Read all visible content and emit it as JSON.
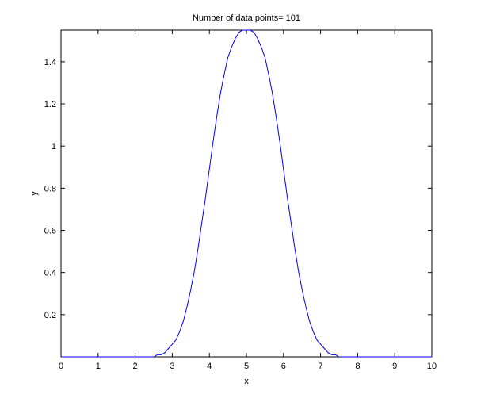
{
  "chart_data": {
    "type": "line",
    "title": "Number of data points= 101",
    "xlabel": "x",
    "ylabel": "y",
    "x": [
      0,
      0.1,
      0.2,
      0.3,
      0.4,
      0.5,
      0.6,
      0.7,
      0.8,
      0.9,
      1,
      1.1,
      1.2,
      1.3,
      1.4,
      1.5,
      1.6,
      1.7,
      1.8,
      1.9,
      2,
      2.1,
      2.2,
      2.3,
      2.4,
      2.5,
      2.6,
      2.7,
      2.8,
      2.9,
      3,
      3.1,
      3.2,
      3.3,
      3.4,
      3.5,
      3.6,
      3.7,
      3.8,
      3.9,
      4,
      4.1,
      4.2,
      4.3,
      4.4,
      4.5,
      4.6,
      4.7,
      4.8,
      4.9,
      5,
      5.1,
      5.2,
      5.3,
      5.4,
      5.5,
      5.6,
      5.7,
      5.8,
      5.9,
      6,
      6.1,
      6.2,
      6.3,
      6.4,
      6.5,
      6.6,
      6.7,
      6.8,
      6.9,
      7,
      7.1,
      7.2,
      7.3,
      7.4,
      7.5,
      7.6,
      7.7,
      7.8,
      7.9,
      8,
      8.1,
      8.2,
      8.3,
      8.4,
      8.5,
      8.6,
      8.7,
      8.8,
      8.9,
      9,
      9.1,
      9.2,
      9.3,
      9.4,
      9.5,
      9.6,
      9.7,
      9.8,
      9.9,
      10
    ],
    "series": [
      {
        "color": "#0000ff",
        "values": [
          0,
          0,
          0,
          0,
          0,
          0,
          0,
          0,
          0,
          0,
          0,
          0,
          0,
          0,
          0,
          0,
          0,
          0,
          0,
          0,
          0,
          0,
          0,
          0,
          0,
          0,
          0.01,
          0.01,
          0.02,
          0.04,
          0.06,
          0.08,
          0.12,
          0.17,
          0.24,
          0.32,
          0.41,
          0.52,
          0.64,
          0.76,
          0.89,
          1.02,
          1.14,
          1.25,
          1.34,
          1.42,
          1.47,
          1.51,
          1.54,
          1.55,
          1.55,
          1.55,
          1.54,
          1.51,
          1.47,
          1.42,
          1.34,
          1.25,
          1.14,
          1.02,
          0.89,
          0.76,
          0.64,
          0.52,
          0.41,
          0.32,
          0.24,
          0.17,
          0.12,
          0.08,
          0.06,
          0.04,
          0.02,
          0.01,
          0.01,
          0,
          0,
          0,
          0,
          0,
          0,
          0,
          0,
          0,
          0,
          0,
          0,
          0,
          0,
          0,
          0,
          0,
          0,
          0,
          0,
          0,
          0,
          0,
          0,
          0,
          0
        ]
      }
    ],
    "xlim": [
      0,
      10
    ],
    "xticks": [
      0,
      1,
      2,
      3,
      4,
      5,
      6,
      7,
      8,
      9,
      10
    ],
    "ylim": [
      0,
      1.55
    ],
    "yticks": [
      0.2,
      0.4,
      0.6,
      0.8,
      1,
      1.2,
      1.4
    ],
    "grid": false
  }
}
